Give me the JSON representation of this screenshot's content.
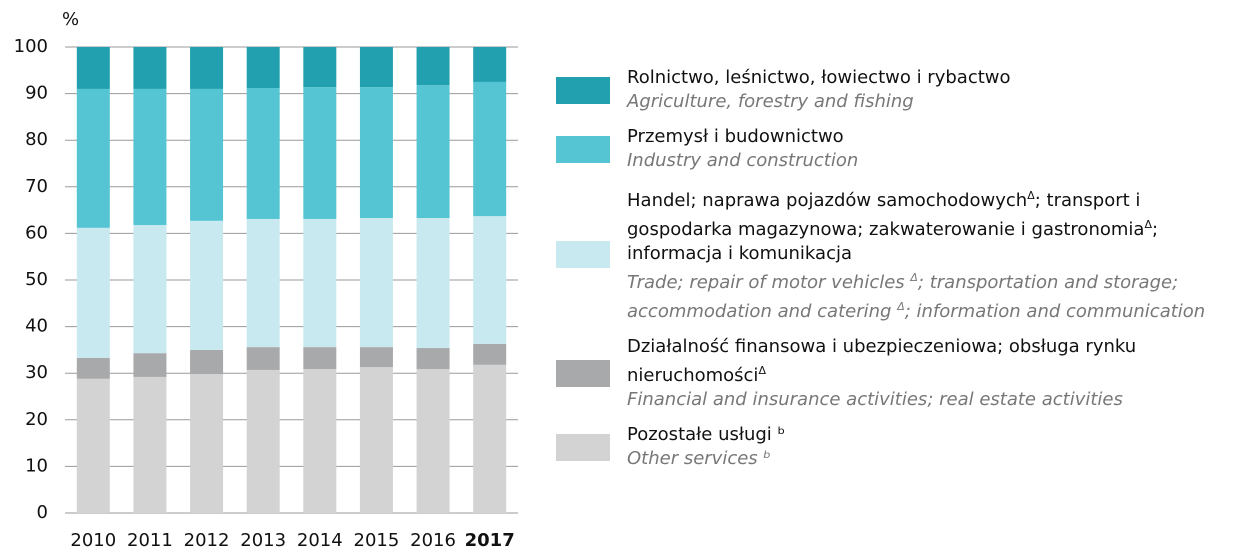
{
  "chart_data": {
    "type": "stacked_bar",
    "ylabel": "%",
    "categories": [
      "2010",
      "2011",
      "2012",
      "2013",
      "2014",
      "2015",
      "2016",
      "2017"
    ],
    "series": [
      {
        "name": "Pozostałe usługi ᵇ",
        "name_en": "Other services ᵇ",
        "color": "#d3d3d3",
        "values": [
          28.8,
          29.2,
          29.8,
          30.7,
          30.9,
          31.3,
          30.9,
          31.8
        ]
      },
      {
        "name": "Działalność finansowa i ubezpieczeniowa; obsługa rynku nieruchomościΔ",
        "name_en": "Financial and insurance activities; real estate activities",
        "color": "#a7a9ab",
        "values": [
          4.5,
          5.1,
          5.2,
          4.9,
          4.7,
          4.3,
          4.5,
          4.5
        ]
      },
      {
        "name": "Handel; naprawa pojazdów samochodowychΔ; transport i gospodarka magazynowa; zakwaterowanie i gastronomiaΔ; informacja i komunikacja",
        "name_en": "Trade; repair of motor vehicles Δ; transportation and storage; accommodation and catering Δ; information and communication",
        "color": "#c8e9ef",
        "values": [
          27.9,
          27.5,
          27.7,
          27.5,
          27.5,
          27.7,
          27.9,
          27.4
        ]
      },
      {
        "name": "Przemysł i budownictwo",
        "name_en": "Industry and construction",
        "color": "#56c5d3",
        "values": [
          29.8,
          29.2,
          28.3,
          28.1,
          28.3,
          28.1,
          28.5,
          28.8
        ]
      },
      {
        "name": "Rolnictwo, leśnictwo, łowiectwo i rybactwo",
        "name_en": "Agriculture, forestry and fishing",
        "color": "#23a0b0",
        "values": [
          9.0,
          9.0,
          9.0,
          8.8,
          8.6,
          8.6,
          8.2,
          7.5
        ]
      }
    ],
    "ylim": [
      0,
      100
    ],
    "yticks": [
      0,
      10,
      20,
      30,
      40,
      50,
      60,
      70,
      80,
      90,
      100
    ],
    "grid": true
  }
}
